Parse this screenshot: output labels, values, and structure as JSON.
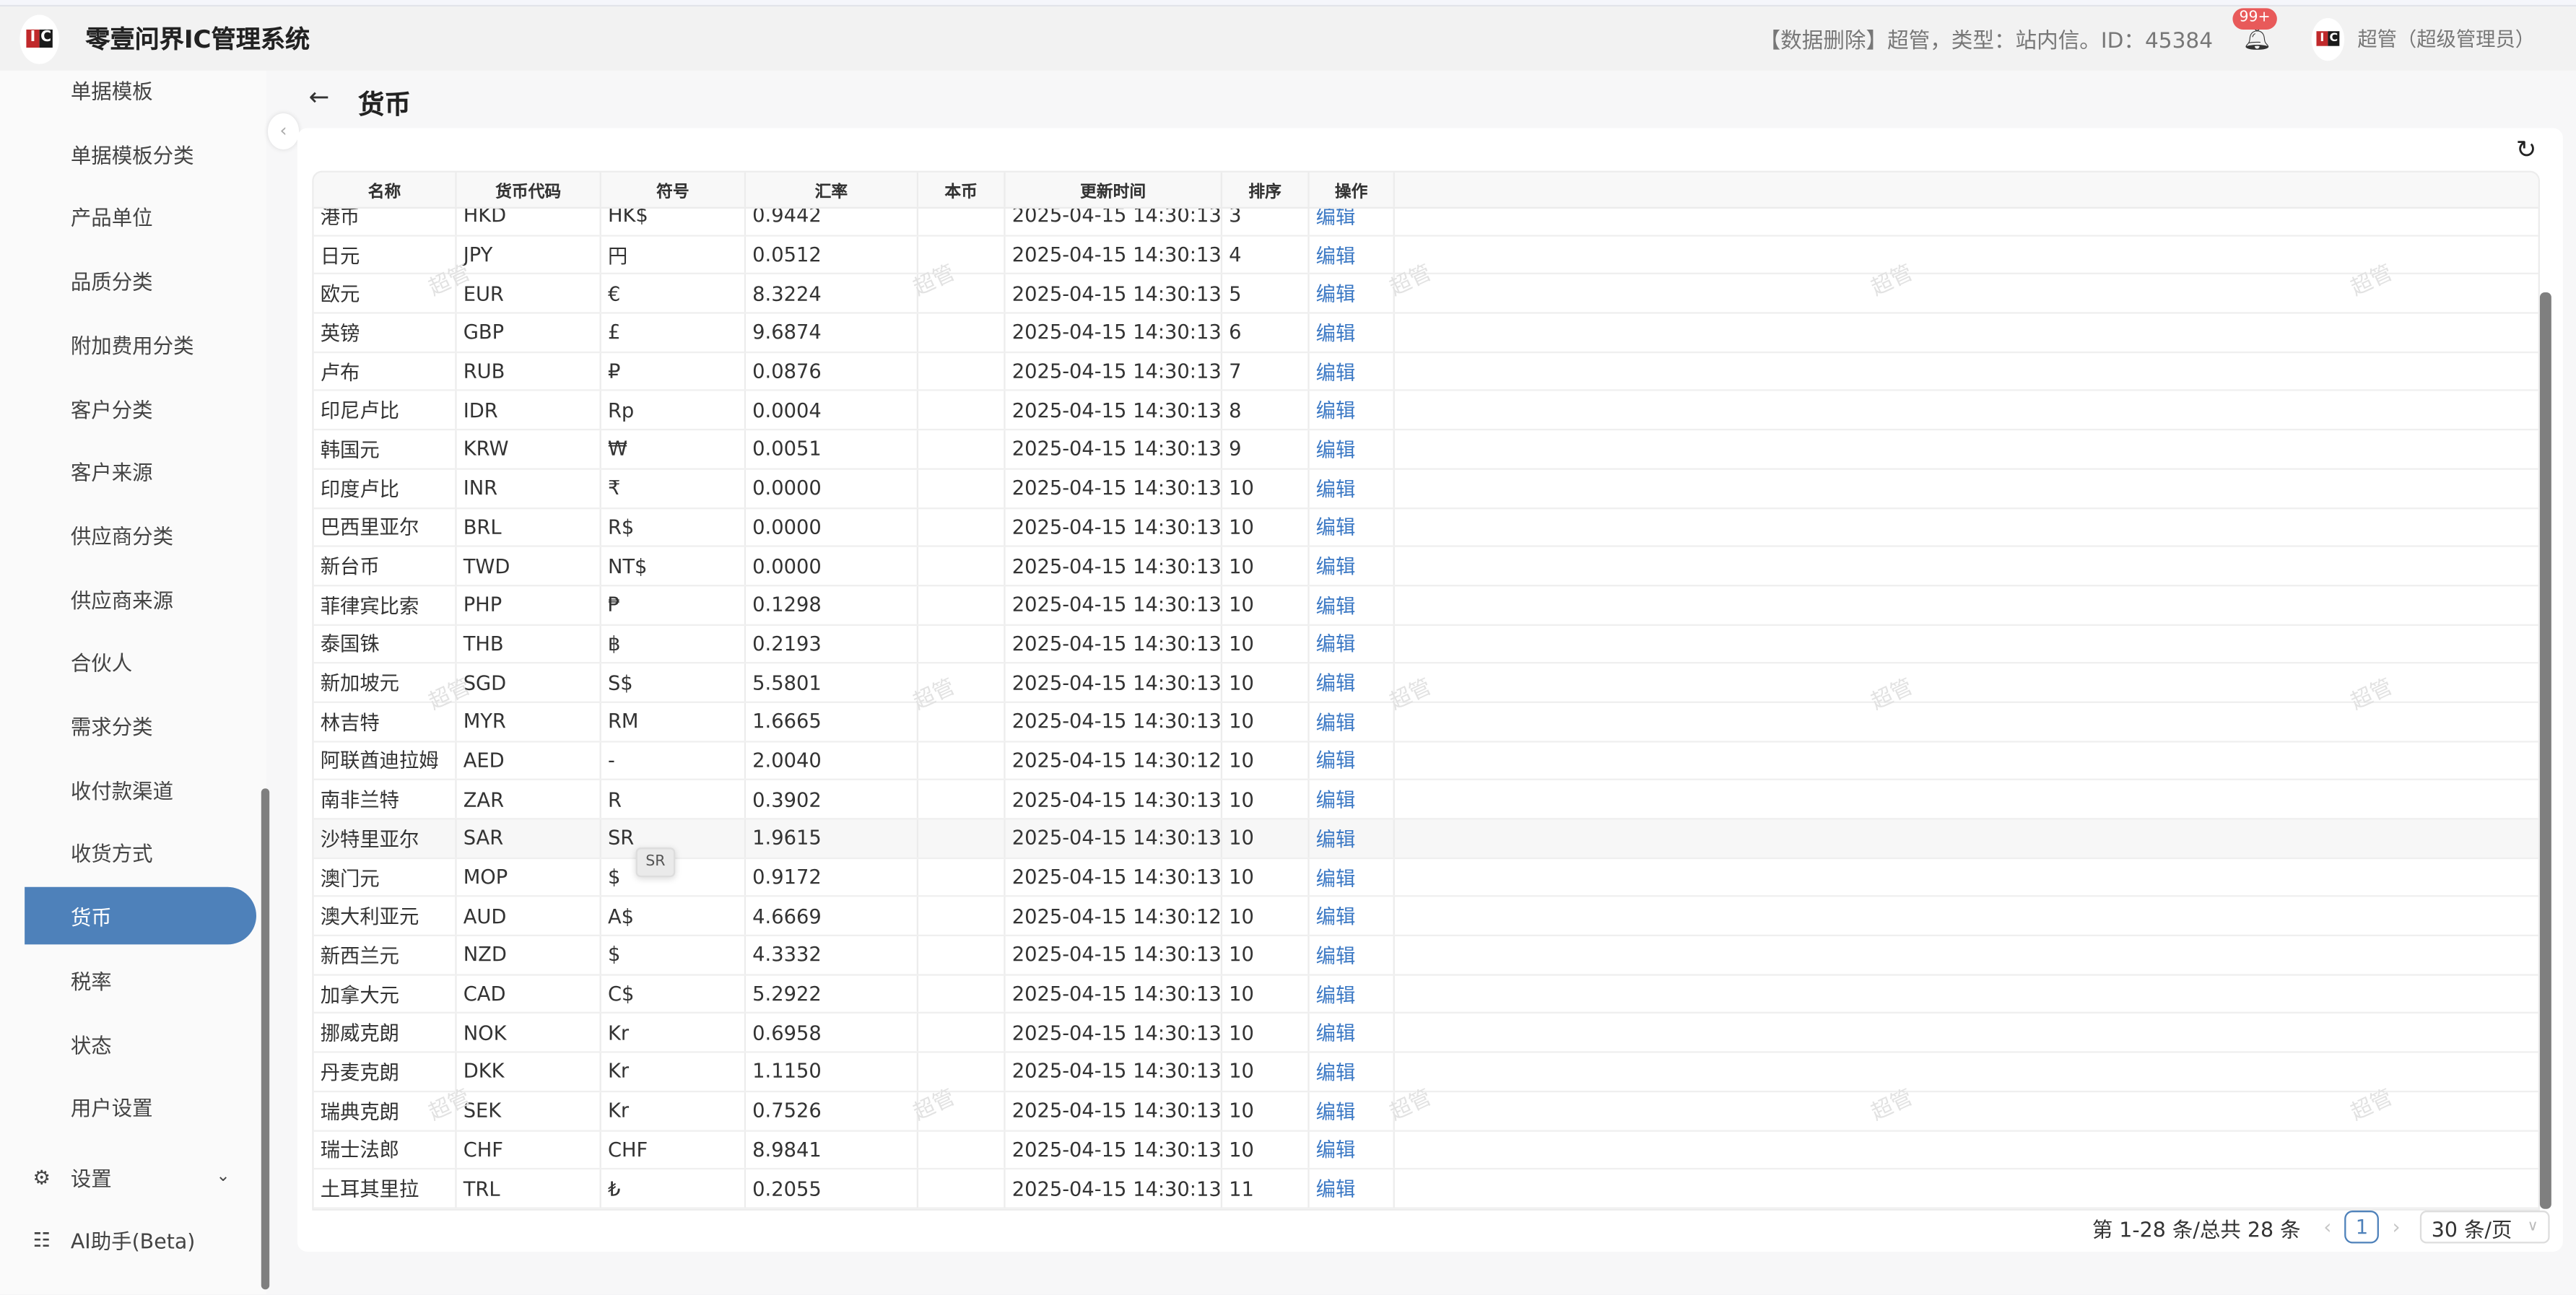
{
  "header": {
    "app_title": "零壹问界IC管理系统",
    "logo_text": "IC",
    "notice": "【数据删除】超管，类型：站内信。ID：45384",
    "badge": "99+",
    "user": "超管（超级管理员）"
  },
  "sidebar": {
    "items": [
      {
        "label": "单据模板"
      },
      {
        "label": "单据模板分类"
      },
      {
        "label": "产品单位"
      },
      {
        "label": "品质分类"
      },
      {
        "label": "附加费用分类"
      },
      {
        "label": "客户分类"
      },
      {
        "label": "客户来源"
      },
      {
        "label": "供应商分类"
      },
      {
        "label": "供应商来源"
      },
      {
        "label": "合伙人"
      },
      {
        "label": "需求分类"
      },
      {
        "label": "收付款渠道"
      },
      {
        "label": "收货方式"
      },
      {
        "label": "货币",
        "active": true
      },
      {
        "label": "税率"
      },
      {
        "label": "状态"
      },
      {
        "label": "用户设置"
      }
    ],
    "settings": "设置",
    "ai": "AI助手(Beta)"
  },
  "page": {
    "title": "货币"
  },
  "table": {
    "columns": [
      "名称",
      "货币代码",
      "符号",
      "汇率",
      "本币",
      "更新时间",
      "排序",
      "操作"
    ],
    "rows": [
      [
        "港币",
        "HKD",
        "HK$",
        "0.9442",
        "",
        "2025-04-15 14:30:13",
        "3",
        "编辑"
      ],
      [
        "日元",
        "JPY",
        "円",
        "0.0512",
        "",
        "2025-04-15 14:30:13",
        "4",
        "编辑"
      ],
      [
        "欧元",
        "EUR",
        "€",
        "8.3224",
        "",
        "2025-04-15 14:30:13",
        "5",
        "编辑"
      ],
      [
        "英镑",
        "GBP",
        "£",
        "9.6874",
        "",
        "2025-04-15 14:30:13",
        "6",
        "编辑"
      ],
      [
        "卢布",
        "RUB",
        "₽",
        "0.0876",
        "",
        "2025-04-15 14:30:13",
        "7",
        "编辑"
      ],
      [
        "印尼卢比",
        "IDR",
        "Rp",
        "0.0004",
        "",
        "2025-04-15 14:30:13",
        "8",
        "编辑"
      ],
      [
        "韩国元",
        "KRW",
        "₩",
        "0.0051",
        "",
        "2025-04-15 14:30:13",
        "9",
        "编辑"
      ],
      [
        "印度卢比",
        "INR",
        "₹",
        "0.0000",
        "",
        "2025-04-15 14:30:13",
        "10",
        "编辑"
      ],
      [
        "巴西里亚尔",
        "BRL",
        "R$",
        "0.0000",
        "",
        "2025-04-15 14:30:13",
        "10",
        "编辑"
      ],
      [
        "新台币",
        "TWD",
        "NT$",
        "0.0000",
        "",
        "2025-04-15 14:30:13",
        "10",
        "编辑"
      ],
      [
        "菲律宾比索",
        "PHP",
        "₱",
        "0.1298",
        "",
        "2025-04-15 14:30:13",
        "10",
        "编辑"
      ],
      [
        "泰国铢",
        "THB",
        "฿",
        "0.2193",
        "",
        "2025-04-15 14:30:13",
        "10",
        "编辑"
      ],
      [
        "新加坡元",
        "SGD",
        "S$",
        "5.5801",
        "",
        "2025-04-15 14:30:13",
        "10",
        "编辑"
      ],
      [
        "林吉特",
        "MYR",
        "RM",
        "1.6665",
        "",
        "2025-04-15 14:30:13",
        "10",
        "编辑"
      ],
      [
        "阿联酋迪拉姆",
        "AED",
        "-",
        "2.0040",
        "",
        "2025-04-15 14:30:12",
        "10",
        "编辑"
      ],
      [
        "南非兰特",
        "ZAR",
        "R",
        "0.3902",
        "",
        "2025-04-15 14:30:13",
        "10",
        "编辑"
      ],
      [
        "沙特里亚尔",
        "SAR",
        "SR",
        "1.9615",
        "",
        "2025-04-15 14:30:13",
        "10",
        "编辑"
      ],
      [
        "澳门元",
        "MOP",
        "$",
        "0.9172",
        "",
        "2025-04-15 14:30:13",
        "10",
        "编辑"
      ],
      [
        "澳大利亚元",
        "AUD",
        "A$",
        "4.6669",
        "",
        "2025-04-15 14:30:12",
        "10",
        "编辑"
      ],
      [
        "新西兰元",
        "NZD",
        "$",
        "4.3332",
        "",
        "2025-04-15 14:30:13",
        "10",
        "编辑"
      ],
      [
        "加拿大元",
        "CAD",
        "C$",
        "5.2922",
        "",
        "2025-04-15 14:30:13",
        "10",
        "编辑"
      ],
      [
        "挪威克朗",
        "NOK",
        "Kr",
        "0.6958",
        "",
        "2025-04-15 14:30:13",
        "10",
        "编辑"
      ],
      [
        "丹麦克朗",
        "DKK",
        "Kr",
        "1.1150",
        "",
        "2025-04-15 14:30:13",
        "10",
        "编辑"
      ],
      [
        "瑞典克朗",
        "SEK",
        "Kr",
        "0.7526",
        "",
        "2025-04-15 14:30:13",
        "10",
        "编辑"
      ],
      [
        "瑞士法郎",
        "CHF",
        "CHF",
        "8.9841",
        "",
        "2025-04-15 14:30:13",
        "10",
        "编辑"
      ],
      [
        "土耳其里拉",
        "TRL",
        "₺",
        "0.2055",
        "",
        "2025-04-15 14:30:13",
        "11",
        "编辑"
      ]
    ],
    "tooltip": "SR",
    "watermark": "超管"
  },
  "pagination": {
    "summary": "第 1-28 条/总共 28 条",
    "current": "1",
    "page_size": "30 条/页"
  },
  "colors": {
    "accent": "#4e81ba",
    "badge": "#e85a5a",
    "link": "#3b78c4"
  }
}
